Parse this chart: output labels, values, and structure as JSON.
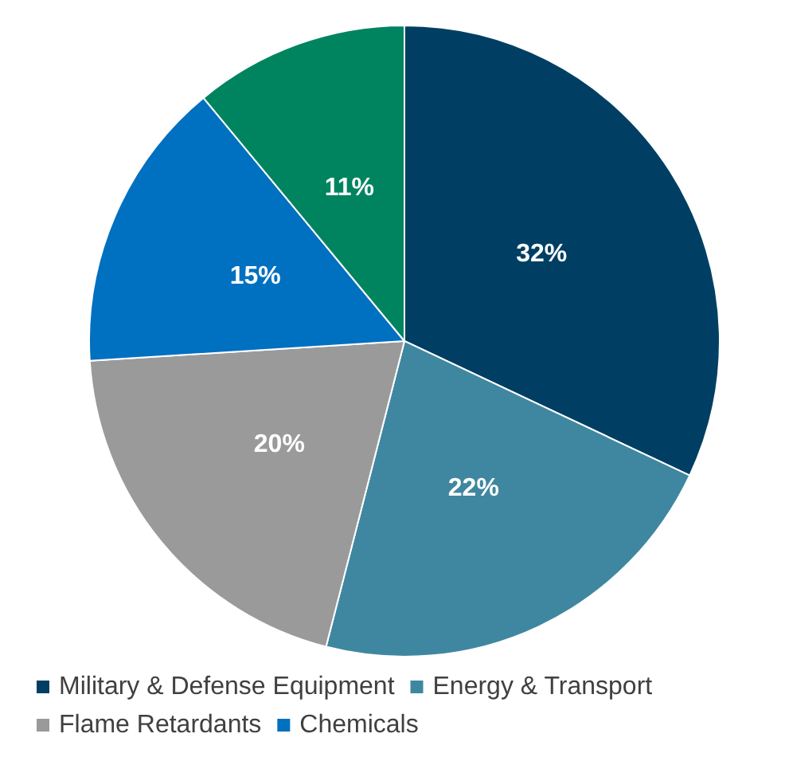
{
  "chart_data": {
    "type": "pie",
    "categories": [
      "Military & Defense Equipment",
      "Energy & Transport",
      "Flame Retardants",
      "Chemicals",
      null
    ],
    "values": [
      32,
      22,
      20,
      15,
      11
    ],
    "value_labels": [
      "32%",
      "22%",
      "20%",
      "15%",
      "11%"
    ],
    "colors": [
      "#003f63",
      "#3f87a0",
      "#9a9a9b",
      "#0070c0",
      "#00845f"
    ],
    "legend": "bottom"
  }
}
